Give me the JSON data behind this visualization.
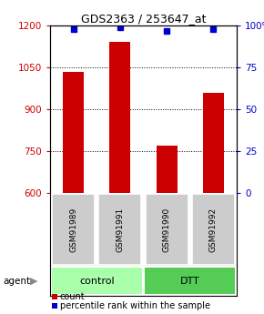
{
  "title": "GDS2363 / 253647_at",
  "samples": [
    "GSM91989",
    "GSM91991",
    "GSM91990",
    "GSM91992"
  ],
  "counts": [
    1035,
    1140,
    770,
    960
  ],
  "percentiles": [
    98,
    99,
    97,
    98
  ],
  "ylim_left": [
    600,
    1200
  ],
  "ylim_right": [
    0,
    100
  ],
  "yticks_left": [
    600,
    750,
    900,
    1050,
    1200
  ],
  "yticks_right": [
    0,
    25,
    50,
    75,
    100
  ],
  "bar_color": "#cc0000",
  "dot_color": "#0000cc",
  "bar_width": 0.45,
  "groups": [
    {
      "label": "control",
      "color": "#aaffaa",
      "indices": [
        0,
        1
      ]
    },
    {
      "label": "DTT",
      "color": "#55cc55",
      "indices": [
        2,
        3
      ]
    }
  ],
  "agent_label": "agent",
  "sample_box_color": "#cccccc",
  "title_fontsize": 9,
  "axis_label_color_left": "#cc0000",
  "axis_label_color_right": "#0000cc",
  "legend_count_color": "#cc0000",
  "legend_pct_color": "#0000cc",
  "tick_fontsize": 7.5
}
